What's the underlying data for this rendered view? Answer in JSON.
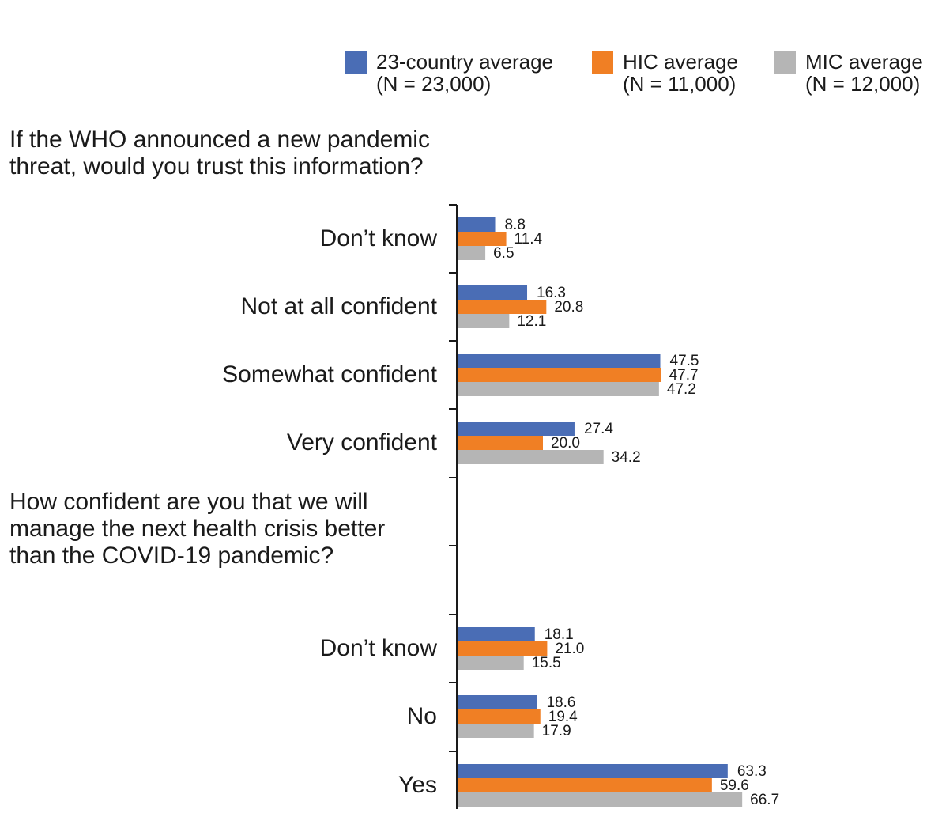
{
  "legend": [
    {
      "name": "23-country average",
      "n_label": "(N = 23,000)",
      "color": "#4a6db5"
    },
    {
      "name": "HIC average",
      "n_label": "(N = 11,000)",
      "color": "#f07f24"
    },
    {
      "name": "MIC average",
      "n_label": "(N = 12,000)",
      "color": "#b5b5b5"
    }
  ],
  "chart_data": [
    {
      "type": "bar",
      "orientation": "horizontal",
      "title": "If the WHO announced a new pandemic threat, would you trust this information?",
      "categories": [
        "Don’t know",
        "Not at all confident",
        "Somewhat confident",
        "Very confident"
      ],
      "series": [
        {
          "name": "23-country average (N = 23,000)",
          "values": [
            8.8,
            16.3,
            47.5,
            27.4
          ]
        },
        {
          "name": "HIC average (N = 11,000)",
          "values": [
            11.4,
            20.8,
            47.7,
            20.0
          ]
        },
        {
          "name": "MIC average (N = 12,000)",
          "values": [
            6.5,
            12.1,
            47.2,
            34.2
          ]
        }
      ],
      "value_labels": [
        [
          "8.8",
          "16.3",
          "47.5",
          "27.4"
        ],
        [
          "11.4",
          "20.8",
          "47.7",
          "20.0"
        ],
        [
          "6.5",
          "12.1",
          "47.2",
          "34.2"
        ]
      ]
    },
    {
      "type": "bar",
      "orientation": "horizontal",
      "title": "How confident are you that we will manage the next health crisis better than the COVID-19 pandemic?",
      "categories": [
        "Don’t know",
        "No",
        "Yes"
      ],
      "series": [
        {
          "name": "23-country average (N = 23,000)",
          "values": [
            18.1,
            18.6,
            63.3
          ]
        },
        {
          "name": "HIC average (N = 11,000)",
          "values": [
            21.0,
            19.4,
            59.6
          ]
        },
        {
          "name": "MIC average (N = 12,000)",
          "values": [
            15.5,
            17.9,
            66.7
          ]
        }
      ],
      "value_labels": [
        [
          "18.1",
          "18.6",
          "63.3"
        ],
        [
          "21.0",
          "19.4",
          "59.6"
        ],
        [
          "15.5",
          "17.9",
          "66.7"
        ]
      ]
    }
  ]
}
